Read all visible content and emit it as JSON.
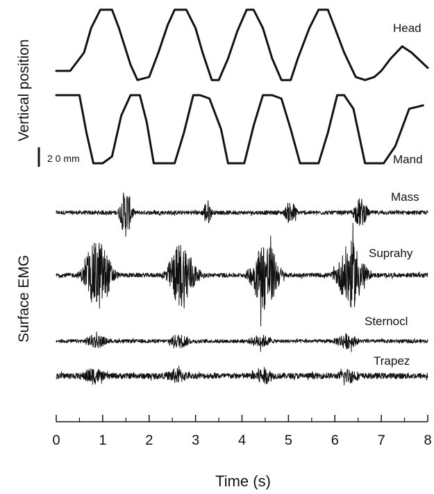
{
  "chart_data": [
    {
      "type": "line",
      "ylabel": "Vertical position",
      "scale_bar": {
        "value": 20,
        "unit": "mm",
        "label": "2 0 mm"
      },
      "series": [
        {
          "name": "Head",
          "x": [
            0,
            0.3,
            0.6,
            0.75,
            0.95,
            1.2,
            1.35,
            1.6,
            1.75,
            2.0,
            2.2,
            2.4,
            2.55,
            2.8,
            3.0,
            3.15,
            3.35,
            3.5,
            3.7,
            3.9,
            4.1,
            4.25,
            4.45,
            4.65,
            4.85,
            5.05,
            5.2,
            5.45,
            5.65,
            5.85,
            6.0,
            6.2,
            6.45,
            6.65,
            6.85,
            7.0,
            7.2,
            7.45,
            7.65,
            8.0
          ],
          "values": [
            0.0,
            0.0,
            0.3,
            0.7,
            1.0,
            1.0,
            0.7,
            0.1,
            -0.15,
            -0.1,
            0.3,
            0.75,
            1.0,
            1.0,
            0.7,
            0.3,
            -0.15,
            -0.15,
            0.2,
            0.65,
            1.0,
            1.0,
            0.7,
            0.2,
            -0.15,
            -0.15,
            0.2,
            0.7,
            1.0,
            1.0,
            0.7,
            0.3,
            -0.1,
            -0.15,
            -0.1,
            0.0,
            0.2,
            0.4,
            0.3,
            0.05
          ]
        },
        {
          "name": "Mand",
          "x": [
            0,
            0.3,
            0.5,
            0.65,
            0.8,
            1.0,
            1.2,
            1.4,
            1.6,
            1.8,
            1.95,
            2.1,
            2.3,
            2.55,
            2.75,
            2.95,
            3.1,
            3.3,
            3.55,
            3.7,
            3.9,
            4.05,
            4.25,
            4.45,
            4.65,
            4.85,
            5.05,
            5.25,
            5.45,
            5.65,
            5.85,
            6.05,
            6.2,
            6.4,
            6.65,
            6.85,
            7.05,
            7.3,
            7.6,
            7.9
          ],
          "values": [
            0.0,
            0.0,
            0.0,
            -0.55,
            -1.0,
            -1.0,
            -0.9,
            -0.3,
            0.0,
            0.0,
            -0.4,
            -1.0,
            -1.0,
            -1.0,
            -0.55,
            0.0,
            0.0,
            -0.05,
            -0.5,
            -1.0,
            -1.0,
            -1.0,
            -0.45,
            0.0,
            0.0,
            -0.05,
            -0.5,
            -1.0,
            -1.0,
            -1.0,
            -0.55,
            0.0,
            0.0,
            -0.2,
            -1.0,
            -1.0,
            -1.0,
            -0.75,
            -0.2,
            -0.15
          ]
        }
      ]
    },
    {
      "type": "line",
      "ylabel": "Surface  EMG",
      "xlabel": "Time   (s)",
      "xlim": [
        0,
        8
      ],
      "xticks": [
        "0",
        "1",
        "2",
        "3",
        "4",
        "5",
        "6",
        "7",
        "8"
      ],
      "series": [
        {
          "name": "Mass",
          "bursts": [
            {
              "t": 1.5,
              "w": 0.25,
              "amp": 1.0
            },
            {
              "t": 3.25,
              "w": 0.18,
              "amp": 0.55
            },
            {
              "t": 5.05,
              "w": 0.25,
              "amp": 0.5
            },
            {
              "t": 6.55,
              "w": 0.3,
              "amp": 0.6
            }
          ],
          "baseline": 0.08
        },
        {
          "name": "Suprahy",
          "bursts": [
            {
              "t": 0.9,
              "w": 0.55,
              "amp": 1.0
            },
            {
              "t": 2.7,
              "w": 0.55,
              "amp": 0.95
            },
            {
              "t": 4.5,
              "w": 0.55,
              "amp": 1.0
            },
            {
              "t": 6.35,
              "w": 0.55,
              "amp": 0.95
            }
          ],
          "baseline": 0.06
        },
        {
          "name": "Sternocl",
          "bursts": [
            {
              "t": 0.85,
              "w": 0.5,
              "amp": 0.8
            },
            {
              "t": 2.65,
              "w": 0.5,
              "amp": 0.8
            },
            {
              "t": 4.4,
              "w": 0.5,
              "amp": 0.75
            },
            {
              "t": 6.25,
              "w": 0.5,
              "amp": 0.9
            }
          ],
          "baseline": 0.2
        },
        {
          "name": "Trapez",
          "bursts": [
            {
              "t": 0.8,
              "w": 0.5,
              "amp": 0.85
            },
            {
              "t": 2.6,
              "w": 0.5,
              "amp": 0.75
            },
            {
              "t": 4.45,
              "w": 0.5,
              "amp": 0.85
            },
            {
              "t": 6.3,
              "w": 0.5,
              "amp": 0.75
            }
          ],
          "baseline": 0.28
        }
      ]
    }
  ]
}
